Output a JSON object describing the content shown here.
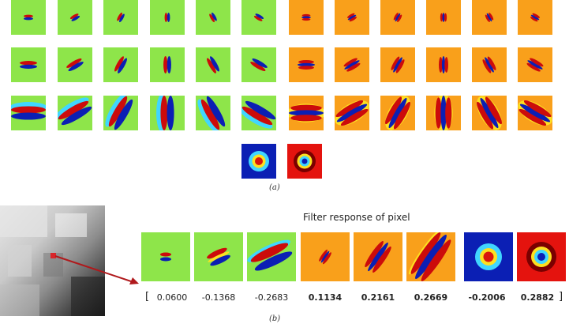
{
  "colors": {
    "green_bg": "#8ee54a",
    "orange_bg": "#f9a01b",
    "blue": "#0b1fb4",
    "red": "#cc0b0b",
    "cyan": "#40d6ff",
    "yellow": "#fde020",
    "dark_red": "#8b0000",
    "arrow": "#b0191c"
  },
  "panel_a": {
    "label": "(a)",
    "rows": [
      {
        "size": "small",
        "green_angles": [
          0,
          30,
          60,
          90,
          120,
          150
        ],
        "orange_angles": [
          0,
          30,
          60,
          90,
          120,
          150
        ]
      },
      {
        "size": "medium",
        "green_angles": [
          0,
          30,
          60,
          90,
          120,
          150
        ],
        "orange_angles": [
          0,
          30,
          60,
          90,
          120,
          150
        ]
      },
      {
        "size": "large",
        "green_angles": [
          0,
          30,
          60,
          90,
          120,
          150
        ],
        "orange_angles": [
          0,
          30,
          60,
          90,
          120,
          150
        ]
      }
    ],
    "extra_filters": [
      "center-surround-blue",
      "center-surround-red"
    ]
  },
  "panel_b": {
    "label": "(b)",
    "title": "Filter response of pixel",
    "open_bracket": "[",
    "close_bracket": "]",
    "responses": [
      {
        "value": "0.0600",
        "bold": false,
        "filter": "green-small"
      },
      {
        "value": "-0.1368",
        "bold": false,
        "filter": "green-medium"
      },
      {
        "value": "-0.2683",
        "bold": false,
        "filter": "green-large"
      },
      {
        "value": "0.1134",
        "bold": true,
        "filter": "orange-small"
      },
      {
        "value": "0.2161",
        "bold": true,
        "filter": "orange-medium"
      },
      {
        "value": "0.2669",
        "bold": true,
        "filter": "orange-large"
      },
      {
        "value": "-0.2006",
        "bold": true,
        "filter": "center-surround-blue"
      },
      {
        "value": "0.2882",
        "bold": true,
        "filter": "center-surround-red"
      }
    ]
  }
}
